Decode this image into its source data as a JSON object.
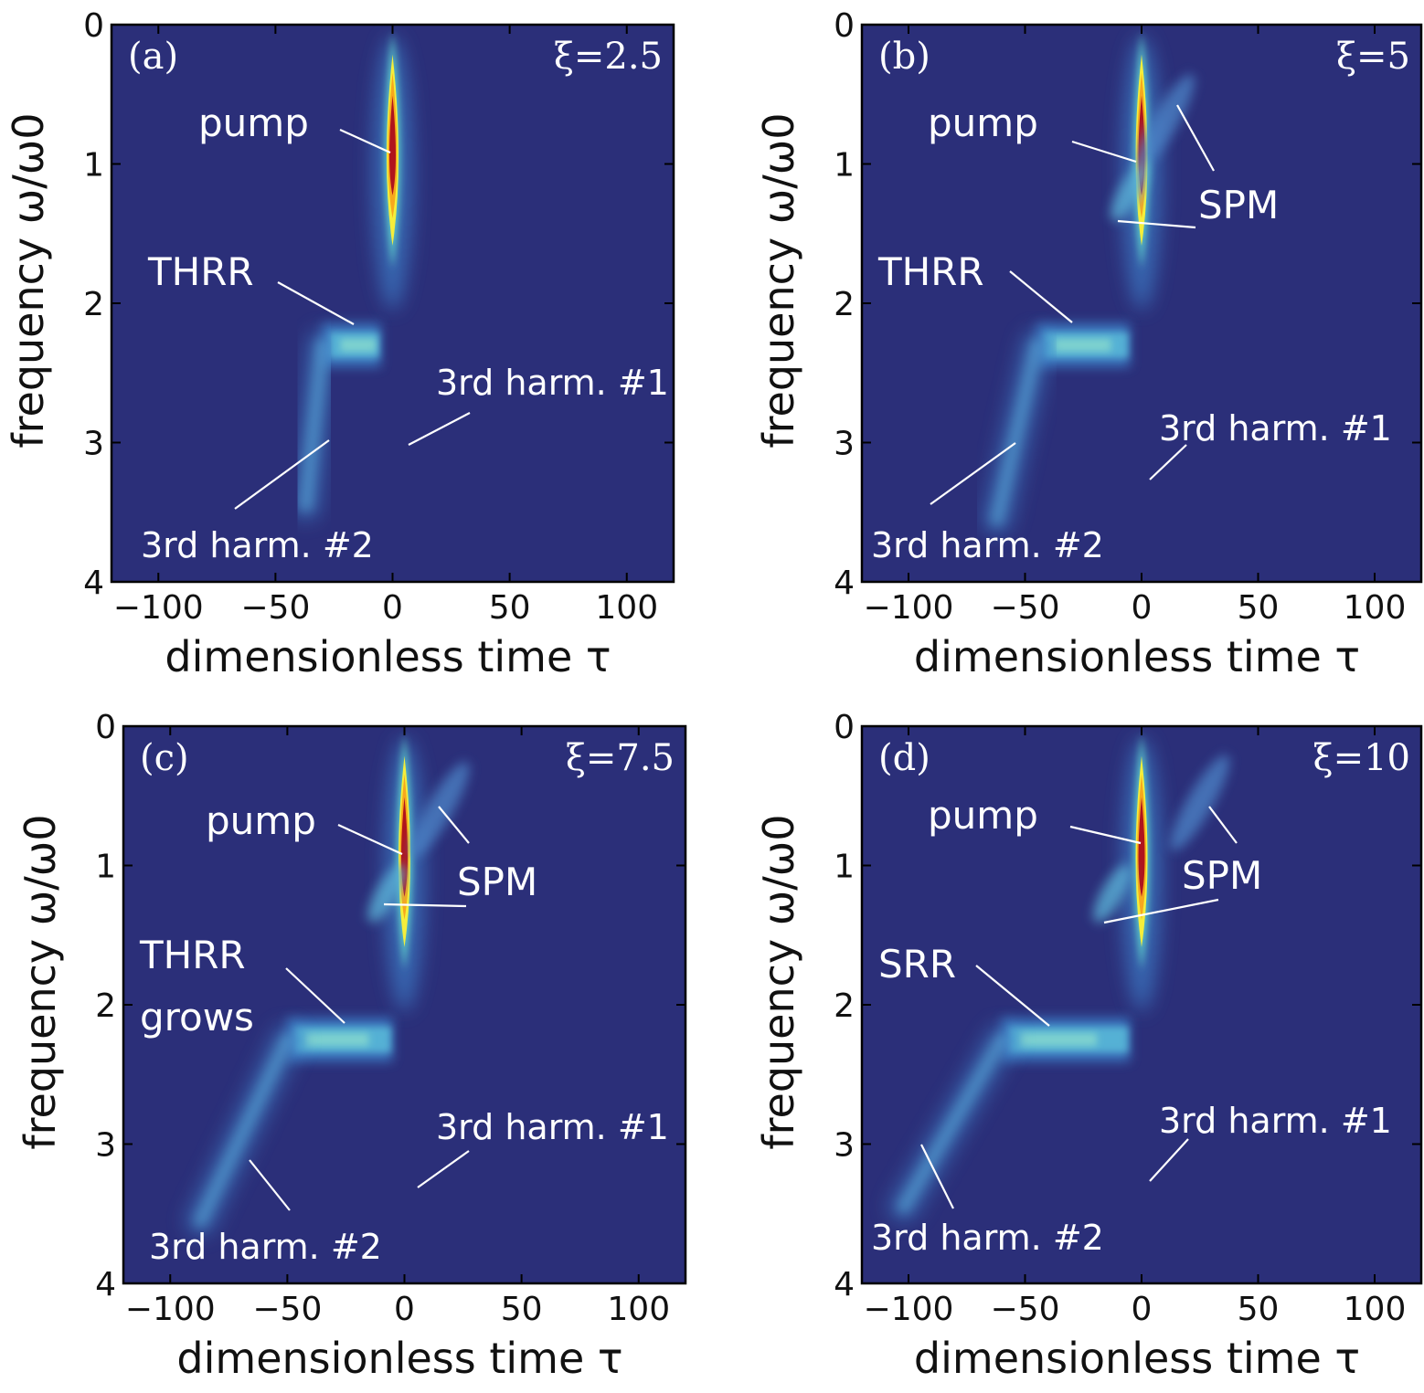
{
  "chart_data": [
    {
      "type": "heatmap",
      "panel_label": "(a)",
      "param_label": "ξ=2.5",
      "xlabel": "dimensionless time τ",
      "ylabel": "frequency ω/ω0",
      "xlim": [
        -120,
        120
      ],
      "ylim": [
        4,
        0
      ],
      "xticks": [
        "−100",
        "−50",
        "0",
        "50",
        "100"
      ],
      "yticks": [
        "0",
        "1",
        "2",
        "3",
        "4"
      ],
      "colors": {
        "background": "#2b2f79",
        "pump_core": "#b0141c",
        "pump_ring": "#f5ee3a",
        "pump_halo": "#f7a81d",
        "feature": "#58b8d8",
        "feature_bright": "#8fe0cc"
      },
      "features": [
        {
          "name": "pump",
          "tau": 0,
          "omega": 1.0,
          "strength": 1.0
        },
        {
          "name": "THRR",
          "tau_start": -30,
          "tau_end": -5,
          "omega": 2.3,
          "strength": 0.45
        },
        {
          "name": "3rd harm. #1",
          "tau": 0,
          "omega": 3.0,
          "strength": 0.3
        },
        {
          "name": "3rd harm. #2",
          "tau": -25,
          "omega": 3.0,
          "strength": 0.3
        }
      ],
      "annotations": [
        {
          "text": "pump",
          "tau": 0,
          "omega": 0.95
        },
        {
          "text": "THRR",
          "tau": -12,
          "omega": 2.1
        },
        {
          "text": "3rd harm. #1",
          "tau": 5,
          "omega": 2.95
        },
        {
          "text": "3rd harm. #2",
          "tau": -28,
          "omega": 2.95
        }
      ]
    },
    {
      "type": "heatmap",
      "panel_label": "(b)",
      "param_label": "ξ=5",
      "xlabel": "dimensionless time τ",
      "ylabel": "frequency ω/ω0",
      "xlim": [
        -120,
        120
      ],
      "ylim": [
        4,
        0
      ],
      "xticks": [
        "−100",
        "−50",
        "0",
        "50",
        "100"
      ],
      "yticks": [
        "0",
        "1",
        "2",
        "3",
        "4"
      ],
      "colors": {
        "background": "#2b2f79",
        "pump_core": "#b0141c",
        "pump_ring": "#f5ee3a",
        "pump_halo": "#f7a81d",
        "feature": "#58b8d8",
        "feature_bright": "#8fe0cc"
      },
      "features": [
        {
          "name": "pump",
          "tau": 0,
          "omega": 1.0,
          "strength": 1.0
        },
        {
          "name": "SPM",
          "tau": 10,
          "omega": 0.7,
          "strength": 0.3
        },
        {
          "name": "THRR",
          "tau_start": -45,
          "tau_end": -5,
          "omega": 2.3,
          "strength": 0.5
        },
        {
          "name": "3rd harm. #1",
          "tau": 0,
          "omega": 3.3,
          "strength": 0.3
        },
        {
          "name": "3rd harm. #2",
          "tau": -50,
          "omega": 3.1,
          "strength": 0.3
        }
      ],
      "annotations": [
        {
          "text": "pump",
          "tau": 0,
          "omega": 0.95
        },
        {
          "text": "SPM",
          "tau": 15,
          "omega": 0.55
        },
        {
          "text": "THRR",
          "tau": -30,
          "omega": 2.1
        },
        {
          "text": "3rd harm. #1",
          "tau": 4,
          "omega": 3.3
        },
        {
          "text": "3rd harm. #2",
          "tau": -55,
          "omega": 3.0
        }
      ]
    },
    {
      "type": "heatmap",
      "panel_label": "(c)",
      "param_label": "ξ=7.5",
      "xlabel": "dimensionless time τ",
      "ylabel": "frequency ω/ω0",
      "xlim": [
        -120,
        120
      ],
      "ylim": [
        4,
        0
      ],
      "xticks": [
        "−100",
        "−50",
        "0",
        "50",
        "100"
      ],
      "yticks": [
        "0",
        "1",
        "2",
        "3",
        "4"
      ],
      "colors": {
        "background": "#2b2f79",
        "pump_core": "#b0141c",
        "pump_ring": "#f5ee3a",
        "pump_halo": "#f7a81d",
        "feature": "#58b8d8",
        "feature_bright": "#8fe0cc"
      },
      "features": [
        {
          "name": "pump",
          "tau": 0,
          "omega": 1.0,
          "strength": 1.0
        },
        {
          "name": "SPM",
          "tau": 15,
          "omega": 0.6,
          "strength": 0.3
        },
        {
          "name": "THRR grows",
          "tau_start": -50,
          "tau_end": -5,
          "omega": 2.25,
          "strength": 0.6
        },
        {
          "name": "3rd harm. #1",
          "tau": 0,
          "omega": 3.3,
          "strength": 0.3
        },
        {
          "name": "3rd harm. #2",
          "tau": -75,
          "omega": 3.1,
          "strength": 0.3
        }
      ],
      "annotations": [
        {
          "text": "pump",
          "tau": -3,
          "omega": 0.95
        },
        {
          "text": "SPM",
          "tau": 20,
          "omega": 0.5
        },
        {
          "text": "THRR grows",
          "tau": -25,
          "omega": 2.2
        },
        {
          "text": "3rd harm. #1",
          "tau": 4,
          "omega": 3.3
        },
        {
          "text": "3rd harm. #2",
          "tau": -65,
          "omega": 3.0
        }
      ]
    },
    {
      "type": "heatmap",
      "panel_label": "(d)",
      "param_label": "ξ=10",
      "xlabel": "dimensionless time τ",
      "ylabel": "frequency ω/ω0",
      "xlim": [
        -120,
        120
      ],
      "ylim": [
        4,
        0
      ],
      "xticks": [
        "−100",
        "−50",
        "0",
        "50",
        "100"
      ],
      "yticks": [
        "0",
        "1",
        "2",
        "3",
        "4"
      ],
      "colors": {
        "background": "#2b2f79",
        "pump_core": "#b0141c",
        "pump_ring": "#f5ee3a",
        "pump_halo": "#f7a81d",
        "feature": "#58b8d8",
        "feature_bright": "#8fe0cc"
      },
      "features": [
        {
          "name": "pump",
          "tau": 0,
          "omega": 1.0,
          "strength": 1.0
        },
        {
          "name": "SPM",
          "tau": 25,
          "omega": 0.55,
          "strength": 0.3
        },
        {
          "name": "SRR",
          "tau_start": -60,
          "tau_end": -5,
          "omega": 2.25,
          "strength": 0.65
        },
        {
          "name": "3rd harm. #1",
          "tau": 0,
          "omega": 3.3,
          "strength": 0.3
        },
        {
          "name": "3rd harm. #2",
          "tau": -90,
          "omega": 3.0,
          "strength": 0.3
        }
      ],
      "annotations": [
        {
          "text": "pump",
          "tau": 0,
          "omega": 0.85
        },
        {
          "text": "SPM",
          "tau": 30,
          "omega": 0.55
        },
        {
          "text": "SRR",
          "tau": -38,
          "omega": 2.2
        },
        {
          "text": "3rd harm. #1",
          "tau": 4,
          "omega": 3.3
        },
        {
          "text": "3rd harm. #2",
          "tau": -90,
          "omega": 2.95
        }
      ]
    }
  ]
}
